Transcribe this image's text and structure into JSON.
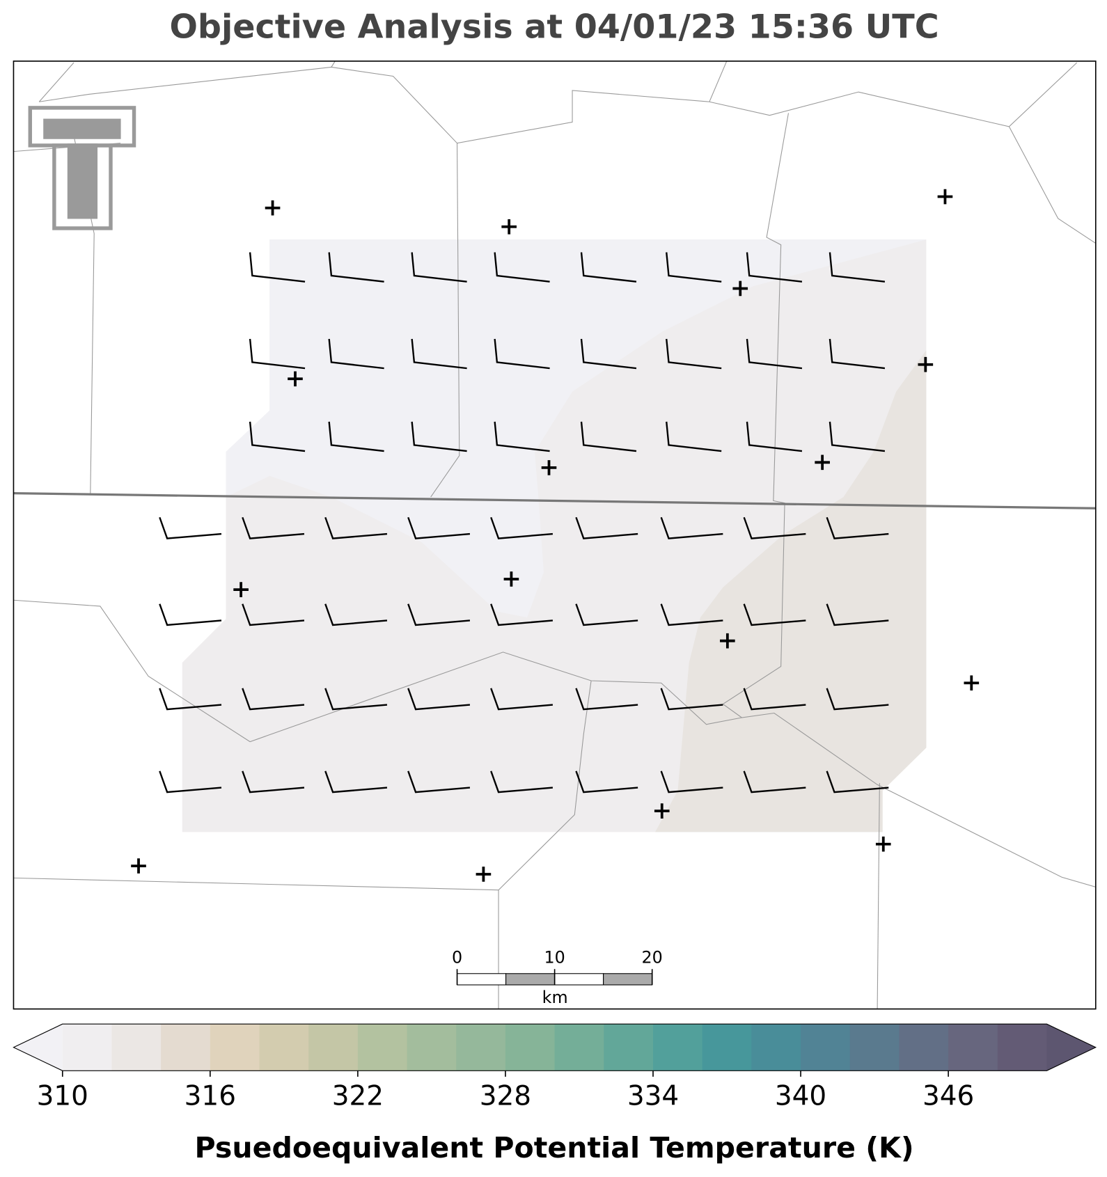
{
  "title": "Objective Analysis at 04/01/23 15:36 UTC",
  "colorbar": {
    "label": "Psuedoequivalent Potential Temperature (K)",
    "lim": [
      310,
      350
    ],
    "ticks": [
      310,
      316,
      322,
      328,
      334,
      340,
      346
    ],
    "colors": [
      "#f0eef0",
      "#ebe7e4",
      "#e4dbd0",
      "#e0d3bc",
      "#d3ccaf",
      "#c4c6a6",
      "#b3c2a0",
      "#a3bd9d",
      "#95b89b",
      "#86b498",
      "#74ae98",
      "#62a799",
      "#52a09b",
      "#47979b",
      "#498d99",
      "#518395",
      "#5a7a8e",
      "#626f86",
      "#67667e",
      "#635b75"
    ],
    "under_color": "#f2f1f5",
    "over_color": "#5d5670"
  },
  "scale_bar": {
    "ticks": [
      0,
      10,
      20
    ],
    "unit": "km"
  }
}
